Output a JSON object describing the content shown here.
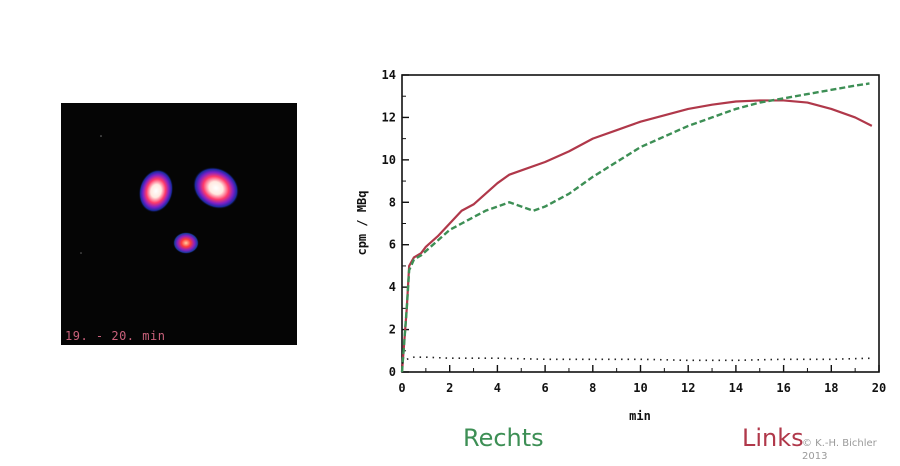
{
  "scan": {
    "caption": "19. - 20. min"
  },
  "chart_data": {
    "type": "line",
    "xlabel": "min",
    "ylabel": "cpm / MBq",
    "xlim": [
      0,
      20
    ],
    "ylim": [
      0,
      14
    ],
    "xticks": [
      0,
      2,
      4,
      6,
      8,
      10,
      12,
      14,
      16,
      18,
      20
    ],
    "yticks": [
      0,
      2,
      4,
      6,
      8,
      10,
      12,
      14
    ],
    "grid": false,
    "series": [
      {
        "name": "Links",
        "color": "#b0384a",
        "style": "solid",
        "x": [
          0,
          0.1,
          0.2,
          0.3,
          0.5,
          0.8,
          1.0,
          1.5,
          2.0,
          2.5,
          3.0,
          3.5,
          4.0,
          4.5,
          5.0,
          6.0,
          7.0,
          8.0,
          9.0,
          10.0,
          11.0,
          12.0,
          13.0,
          14.0,
          15.0,
          16.0,
          17.0,
          18.0,
          19.0,
          19.7
        ],
        "values": [
          0,
          1.5,
          3.0,
          5.0,
          5.4,
          5.6,
          5.9,
          6.4,
          7.0,
          7.6,
          7.9,
          8.4,
          8.9,
          9.3,
          9.5,
          9.9,
          10.4,
          11.0,
          11.4,
          11.8,
          12.1,
          12.4,
          12.6,
          12.75,
          12.8,
          12.8,
          12.7,
          12.4,
          12.0,
          11.6
        ]
      },
      {
        "name": "Rechts",
        "color": "#3d8f55",
        "style": "dashed",
        "x": [
          0,
          0.1,
          0.2,
          0.3,
          0.5,
          0.8,
          1.0,
          1.5,
          2.0,
          2.5,
          3.0,
          3.5,
          4.0,
          4.5,
          5.0,
          5.5,
          6.0,
          7.0,
          8.0,
          9.0,
          10.0,
          11.0,
          12.0,
          13.0,
          14.0,
          15.0,
          16.0,
          17.0,
          18.0,
          19.0,
          19.6
        ],
        "values": [
          0,
          1.5,
          3.0,
          4.8,
          5.3,
          5.5,
          5.7,
          6.2,
          6.7,
          7.0,
          7.3,
          7.6,
          7.8,
          8.0,
          7.8,
          7.6,
          7.8,
          8.4,
          9.2,
          9.9,
          10.6,
          11.1,
          11.6,
          12.0,
          12.4,
          12.7,
          12.9,
          13.1,
          13.3,
          13.5,
          13.6
        ]
      },
      {
        "name": "",
        "color": "#222222",
        "style": "dotted",
        "x": [
          0,
          0.2,
          0.5,
          1,
          2,
          4,
          6,
          8,
          10,
          12,
          14,
          16,
          18,
          19.7
        ],
        "values": [
          0.4,
          0.6,
          0.7,
          0.7,
          0.65,
          0.65,
          0.6,
          0.6,
          0.6,
          0.55,
          0.55,
          0.6,
          0.6,
          0.65
        ]
      }
    ]
  },
  "legend": {
    "rechts": "Rechts",
    "links": "Links"
  },
  "copyright": "© K.-H. Bichler 2013"
}
